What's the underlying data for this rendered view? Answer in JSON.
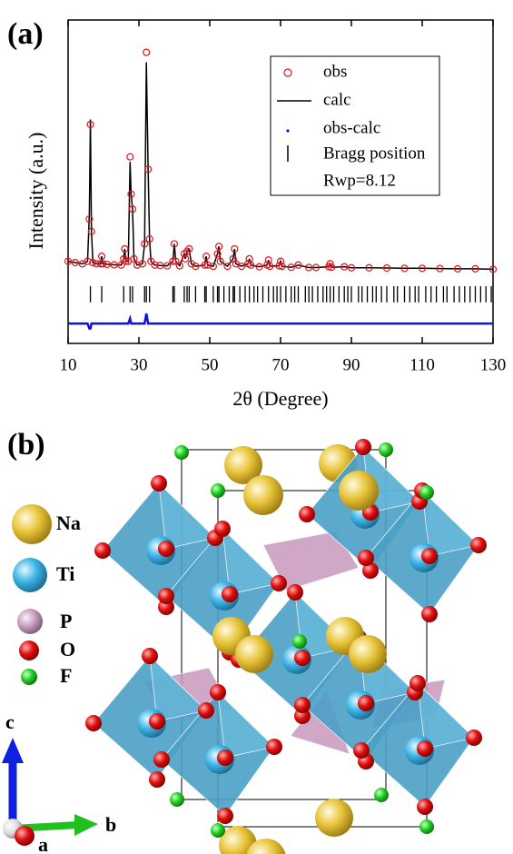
{
  "chart_data": {
    "type": "line",
    "panel_label": "(a)",
    "x_label": "2θ (Degree)",
    "y_label": "Intensity (a.u.)",
    "xlim": [
      10,
      130
    ],
    "xticks": [
      10,
      30,
      50,
      70,
      90,
      110,
      130
    ],
    "ylim": [
      -30,
      100
    ],
    "x": [
      10,
      12,
      14,
      15.5,
      16.0,
      16.3,
      16.6,
      17,
      18,
      19.2,
      19.5,
      19.8,
      21,
      23,
      25,
      25.7,
      26,
      26.3,
      27,
      27.5,
      27.8,
      28.2,
      28.6,
      29.5,
      31,
      31.6,
      32.1,
      32.6,
      33,
      33.4,
      34.5,
      36,
      38,
      39.6,
      40,
      40.4,
      41.5,
      42.8,
      43.1,
      43.6,
      44.2,
      44.8,
      46,
      48.6,
      49,
      49.4,
      51,
      52.2,
      52.6,
      53,
      55,
      56.6,
      57,
      57.4,
      59,
      60.8,
      61.2,
      61.6,
      64,
      66.2,
      66.6,
      67,
      69.6,
      70,
      70.4,
      73,
      75,
      78,
      80,
      83.6,
      84,
      84.4,
      88,
      90,
      95,
      100,
      105,
      110,
      115,
      120,
      125,
      130
    ],
    "series": [
      {
        "name": "obs",
        "color": "#e0141e",
        "style": "circles",
        "values": [
          3,
          2.5,
          2,
          3,
          20,
          58,
          15,
          2.5,
          2,
          2,
          5,
          2,
          1.8,
          1.6,
          1.5,
          4,
          8,
          3,
          3,
          45,
          30,
          24,
          4,
          1.5,
          2,
          10,
          87,
          40,
          12,
          3,
          1.5,
          1.3,
          1.2,
          3,
          10,
          3,
          1.2,
          6,
          4,
          7,
          8,
          2,
          1,
          1.5,
          5,
          1.5,
          1,
          6,
          9,
          3,
          1,
          4,
          8,
          2,
          1,
          2,
          4,
          1.5,
          0.8,
          1.5,
          3.5,
          1,
          1.2,
          3,
          1,
          0.6,
          1.5,
          0.5,
          0.5,
          0.8,
          2,
          0.6,
          0.8,
          0.4,
          0.4,
          0.3,
          0.2,
          0.2,
          0.1,
          0,
          0,
          -0.2
        ]
      },
      {
        "name": "calc",
        "color": "#000000",
        "style": "line",
        "values": [
          3,
          2.5,
          2,
          3,
          22,
          60,
          15,
          2.5,
          2,
          2,
          5,
          2,
          1.8,
          1.6,
          1.5,
          4,
          8,
          3,
          3,
          43,
          30,
          24,
          4,
          1.5,
          2,
          10,
          83,
          40,
          12,
          3,
          1.5,
          1.3,
          1.2,
          3,
          10,
          3,
          1.2,
          6,
          4,
          7,
          8,
          2,
          1,
          1.5,
          5,
          1.5,
          1,
          6,
          9,
          3,
          1,
          4,
          8,
          2,
          1,
          2,
          4,
          1.5,
          0.8,
          1.5,
          3.5,
          1,
          1.2,
          3,
          1,
          0.6,
          1.5,
          0.5,
          0.5,
          0.8,
          2,
          0.6,
          0.8,
          0.4,
          0.4,
          0.3,
          0.2,
          0.2,
          0.1,
          0,
          0,
          -0.2
        ]
      },
      {
        "name": "obs-calc",
        "color": "#1010e0",
        "style": "dots",
        "values": [
          -22,
          -22,
          -22,
          -22,
          -24,
          -24,
          -22,
          -22,
          -22,
          -22,
          -22,
          -22,
          -22,
          -22,
          -22,
          -22,
          -22,
          -22,
          -22,
          -20,
          -22,
          -22,
          -22,
          -22,
          -22,
          -22,
          -18,
          -22,
          -22,
          -22,
          -22,
          -22,
          -22,
          -22,
          -22,
          -22,
          -22,
          -22,
          -22,
          -22,
          -22,
          -22,
          -22,
          -22,
          -22,
          -22,
          -22,
          -22,
          -22,
          -22,
          -22,
          -22,
          -22,
          -22,
          -22,
          -22,
          -22,
          -22,
          -22,
          -22,
          -22,
          -22,
          -22,
          -22,
          -22,
          -22,
          -22,
          -22,
          -22,
          -22,
          -22,
          -22,
          -22,
          -22,
          -22,
          -22,
          -22,
          -22,
          -22,
          -22,
          -22,
          -22
        ]
      }
    ],
    "bragg": {
      "name": "Bragg position",
      "color": "#000000",
      "positions": [
        16.3,
        19.5,
        25.7,
        27.5,
        28.2,
        31.6,
        32.1,
        33,
        39.6,
        40,
        42.8,
        43.6,
        44.2,
        46,
        48.6,
        49,
        51,
        52.2,
        52.6,
        54,
        55.5,
        56.6,
        57,
        58.5,
        60,
        61.2,
        62.5,
        63.5,
        65,
        66.6,
        68,
        69,
        70,
        71.5,
        73,
        74,
        75,
        77,
        78,
        79,
        80.5,
        82,
        83,
        84,
        85,
        86.5,
        88,
        89,
        90,
        92,
        93,
        94.5,
        96,
        97,
        98.5,
        100,
        102,
        103,
        105,
        106.5,
        108,
        109,
        111,
        112.5,
        114,
        116,
        117,
        119,
        120.5,
        122,
        123.5,
        125,
        126.5,
        128,
        129.5
      ]
    },
    "annotation": "Rwp=8.12"
  },
  "structure": {
    "panel_label": "(b)",
    "atoms": [
      "Na",
      "Ti",
      "P",
      "O",
      "F"
    ],
    "axes": [
      "c",
      "b",
      "a"
    ]
  }
}
